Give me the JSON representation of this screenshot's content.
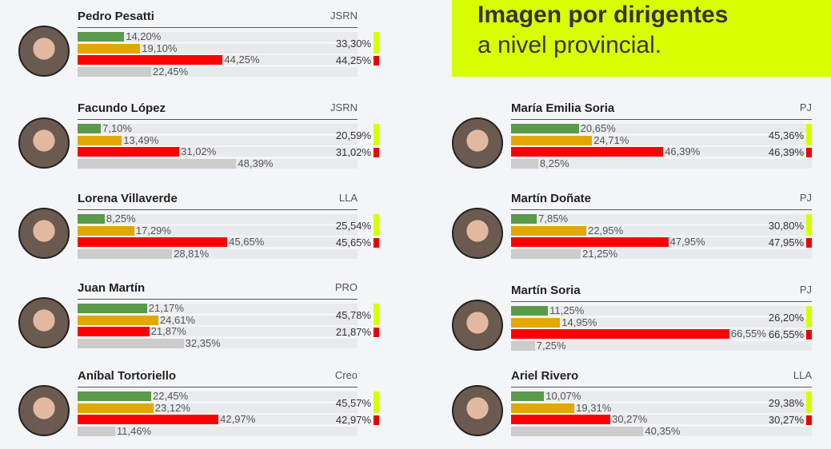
{
  "header": {
    "title": "Imagen por dirigentes",
    "subtitle": "a nivel provincial."
  },
  "colors": {
    "positive": "#5a9a4a",
    "regular": "#e0a800",
    "negative": "#ff0000",
    "unknown": "#cccccc",
    "accent": "#d8ff00"
  },
  "chart_data": {
    "type": "bar",
    "series_colors": [
      "#5a9a4a",
      "#e0a800",
      "#ff0000",
      "#cccccc"
    ],
    "candidates": [
      {
        "name": "Pedro Pesatti",
        "party": "JSRN",
        "values": [
          14.2,
          19.1,
          44.25,
          22.45
        ],
        "labels": [
          "14,20%",
          "19,10%",
          "44,25%",
          "22,45%"
        ],
        "summary": [
          "33,30%",
          "44,25%"
        ]
      },
      {
        "name": "Facundo López",
        "party": "JSRN",
        "values": [
          7.1,
          13.49,
          31.02,
          48.39
        ],
        "labels": [
          "7,10%",
          "13,49%",
          "31,02%",
          "48,39%"
        ],
        "summary": [
          "20,59%",
          "31,02%"
        ]
      },
      {
        "name": "Lorena Villaverde",
        "party": "LLA",
        "values": [
          8.25,
          17.29,
          45.65,
          28.81
        ],
        "labels": [
          "8,25%",
          "17,29%",
          "45,65%",
          "28,81%"
        ],
        "summary": [
          "25,54%",
          "45,65%"
        ]
      },
      {
        "name": "Juan Martín",
        "party": "PRO",
        "values": [
          21.17,
          24.61,
          21.87,
          32.35
        ],
        "labels": [
          "21,17%",
          "24,61%",
          "21,87%",
          "32,35%"
        ],
        "summary": [
          "45,78%",
          "21,87%"
        ]
      },
      {
        "name": "Aníbal Tortoriello",
        "party": "Creo",
        "values": [
          22.45,
          23.12,
          42.97,
          11.46
        ],
        "labels": [
          "22,45%",
          "23,12%",
          "42,97%",
          "11,46%"
        ],
        "summary": [
          "45,57%",
          "42,97%"
        ]
      },
      {
        "name": "María Emilia Soria",
        "party": "PJ",
        "values": [
          20.65,
          24.71,
          46.39,
          8.25
        ],
        "labels": [
          "20,65%",
          "24,71%",
          "46,39%",
          "8,25%"
        ],
        "summary": [
          "45,36%",
          "46,39%"
        ]
      },
      {
        "name": "Martín Doñate",
        "party": "PJ",
        "values": [
          7.85,
          22.95,
          47.95,
          21.25
        ],
        "labels": [
          "7,85%",
          "22,95%",
          "47,95%",
          "21,25%"
        ],
        "summary": [
          "30,80%",
          "47,95%"
        ]
      },
      {
        "name": "Martín Soria",
        "party": "PJ",
        "values": [
          11.25,
          14.95,
          66.55,
          7.25
        ],
        "labels": [
          "11,25%",
          "14,95%",
          "66,55%",
          "7,25%"
        ],
        "summary": [
          "26,20%",
          "66,55%"
        ]
      },
      {
        "name": "Ariel Rivero",
        "party": "LLA",
        "values": [
          10.07,
          19.31,
          30.27,
          40.35
        ],
        "labels": [
          "10,07%",
          "19,31%",
          "30,27%",
          "40,35%"
        ],
        "summary": [
          "29,38%",
          "30,27%"
        ]
      }
    ]
  }
}
